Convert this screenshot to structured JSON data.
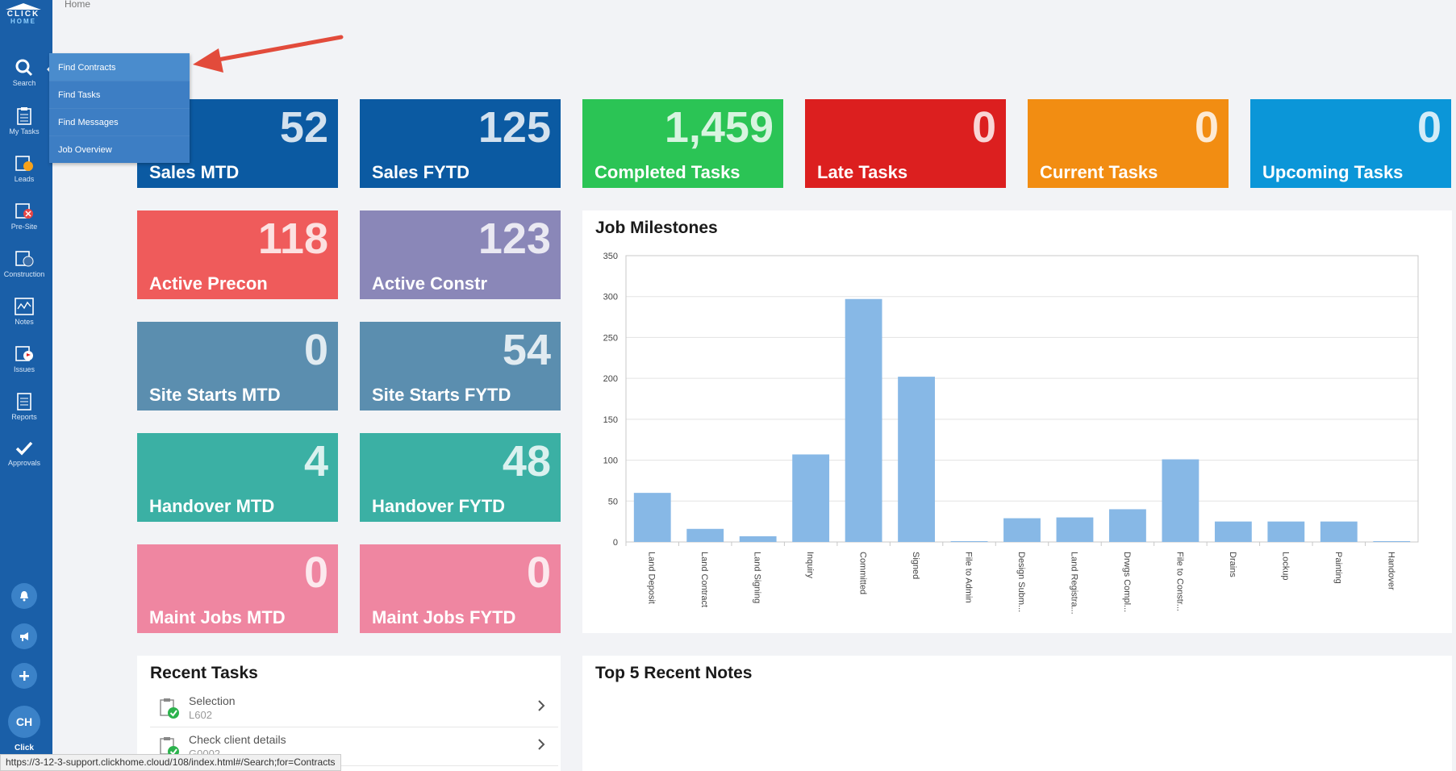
{
  "breadcrumb": "Home",
  "logo": {
    "line1": "CLICK",
    "line2": "HOME"
  },
  "sidebar": {
    "items": [
      {
        "label": "Search",
        "icon": "search-icon"
      },
      {
        "label": "My Tasks",
        "icon": "clipboard-icon"
      },
      {
        "label": "Leads",
        "icon": "leads-icon"
      },
      {
        "label": "Pre-Site",
        "icon": "presite-icon"
      },
      {
        "label": "Construction",
        "icon": "construction-icon"
      },
      {
        "label": "Notes",
        "icon": "notes-icon"
      },
      {
        "label": "Issues",
        "icon": "issues-icon"
      },
      {
        "label": "Reports",
        "icon": "reports-icon"
      },
      {
        "label": "Approvals",
        "icon": "check-icon"
      }
    ],
    "user_initials": "CH",
    "user_label": "Click"
  },
  "flyout": {
    "items": [
      "Find Contracts",
      "Find Tasks",
      "Find Messages",
      "Job Overview"
    ]
  },
  "tiles": [
    {
      "value": "52",
      "label": "Sales MTD",
      "color": "#0b5aa2"
    },
    {
      "value": "125",
      "label": "Sales FYTD",
      "color": "#0b5aa2"
    },
    {
      "value": "1,459",
      "label": "Completed Tasks",
      "color": "#2bc455"
    },
    {
      "value": "0",
      "label": "Late Tasks",
      "color": "#dc1f1f"
    },
    {
      "value": "0",
      "label": "Current Tasks",
      "color": "#f28d12"
    },
    {
      "value": "0",
      "label": "Upcoming Tasks",
      "color": "#0b96d8"
    },
    {
      "value": "118",
      "label": "Active Precon",
      "color": "#ef5b5b"
    },
    {
      "value": "123",
      "label": "Active Constr",
      "color": "#8a87b8"
    },
    {
      "value": "0",
      "label": "Site Starts MTD",
      "color": "#5b8eaf"
    },
    {
      "value": "54",
      "label": "Site Starts FYTD",
      "color": "#5b8eaf"
    },
    {
      "value": "4",
      "label": "Handover MTD",
      "color": "#3bb0a4"
    },
    {
      "value": "48",
      "label": "Handover FYTD",
      "color": "#3bb0a4"
    },
    {
      "value": "0",
      "label": "Maint Jobs MTD",
      "color": "#ef86a1"
    },
    {
      "value": "0",
      "label": "Maint Jobs FYTD",
      "color": "#ef86a1"
    }
  ],
  "chart_data": {
    "type": "bar",
    "title": "Job Milestones",
    "categories": [
      "Land Deposit",
      "Land Contract",
      "Land Signing",
      "Inquiry",
      "Committed",
      "Signed",
      "File to Admin",
      "Design Subm...",
      "Land Registra...",
      "Drwgs Compl...",
      "File to Constr...",
      "Drains",
      "Lockup",
      "Painting",
      "Handover"
    ],
    "values": [
      60,
      16,
      7,
      107,
      297,
      202,
      1,
      29,
      30,
      40,
      101,
      25,
      25,
      25,
      1
    ],
    "ylim": [
      0,
      350
    ],
    "yticks": [
      "0",
      "50",
      "100",
      "150",
      "200",
      "250",
      "300",
      "350"
    ],
    "bar_color": "#87b8e6",
    "xlabel": "",
    "ylabel": ""
  },
  "recent_tasks": {
    "title": "Recent Tasks",
    "items": [
      {
        "name": "Selection",
        "ref": "L602"
      },
      {
        "name": "Check client details",
        "ref": "G0002"
      }
    ]
  },
  "notes_panel": {
    "title": "Top 5 Recent Notes"
  },
  "status_url": "https://3-12-3-support.clickhome.cloud/108/index.html#/Search;for=Contracts"
}
